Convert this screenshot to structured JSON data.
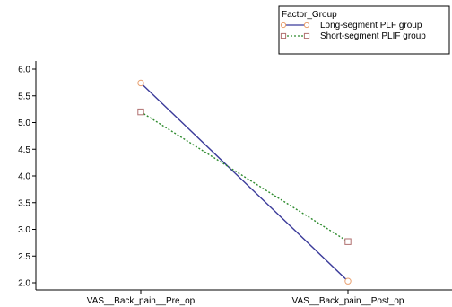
{
  "chart_data": {
    "type": "line",
    "title": "",
    "xlabel": "",
    "ylabel": "",
    "categories": [
      "VAS__Back_pain__Pre_op",
      "VAS__Back_pain__Post_op"
    ],
    "ylim": [
      1.9,
      6.1
    ],
    "yticks": [
      2.0,
      2.5,
      3.0,
      3.5,
      4.0,
      4.5,
      5.0,
      5.5,
      6.0
    ],
    "grid": false,
    "legend": {
      "title": "Factor_Group",
      "placement": "top-right"
    },
    "series": [
      {
        "name": "Long-segment PLF group",
        "values": [
          5.74,
          2.03
        ],
        "line_color": "#3b3b9a",
        "line_style": "solid",
        "marker": "circle",
        "marker_color": "#e8a070"
      },
      {
        "name": "Short-segment PLIF group",
        "values": [
          5.2,
          2.77
        ],
        "line_color": "#2e8b2e",
        "line_style": "dotted",
        "marker": "square",
        "marker_color": "#b07070"
      }
    ]
  }
}
